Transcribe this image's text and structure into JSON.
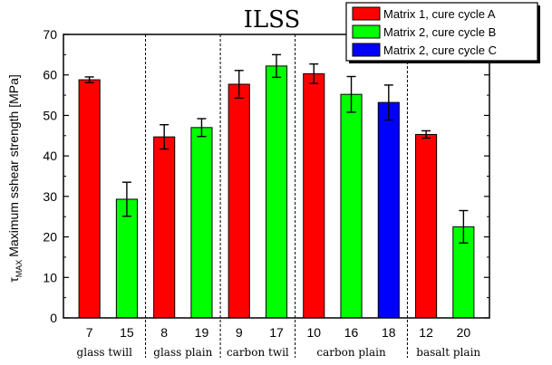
{
  "chart_data": {
    "type": "bar",
    "title": "ILSS",
    "ylabel_symbol": "τ",
    "ylabel_subscript": "MAX",
    "ylabel_text": "Maximum sshear strength [MPa]",
    "ylim": [
      0,
      70
    ],
    "yticks": [
      0,
      10,
      20,
      30,
      40,
      50,
      60,
      70
    ],
    "grid": false,
    "legend_position": "top-right",
    "legend": [
      {
        "key": "A",
        "label": "Matrix 1, cure cycle A",
        "color": "#ff0000"
      },
      {
        "key": "B",
        "label": "Matrix 2, cure cycle B",
        "color": "#00ff00"
      },
      {
        "key": "C",
        "label": "Matrix 2, cure cycle C",
        "color": "#0000ff"
      }
    ],
    "bars": [
      {
        "label": "7",
        "group": "glass twill",
        "series": "A",
        "value": 58.8,
        "error": 0.7
      },
      {
        "label": "15",
        "group": "glass twill",
        "series": "B",
        "value": 29.3,
        "error": 4.2
      },
      {
        "label": "8",
        "group": "glass plain",
        "series": "A",
        "value": 44.7,
        "error": 3.0
      },
      {
        "label": "19",
        "group": "glass plain",
        "series": "B",
        "value": 47.0,
        "error": 2.2
      },
      {
        "label": "9",
        "group": "carbon twil",
        "series": "A",
        "value": 57.7,
        "error": 3.4
      },
      {
        "label": "17",
        "group": "carbon twil",
        "series": "B",
        "value": 62.2,
        "error": 2.8
      },
      {
        "label": "10",
        "group": "carbon plain",
        "series": "A",
        "value": 60.3,
        "error": 2.4
      },
      {
        "label": "16",
        "group": "carbon plain",
        "series": "B",
        "value": 55.2,
        "error": 4.4
      },
      {
        "label": "18",
        "group": "carbon plain",
        "series": "C",
        "value": 53.2,
        "error": 4.3
      },
      {
        "label": "12",
        "group": "basalt plain",
        "series": "A",
        "value": 45.3,
        "error": 0.9
      },
      {
        "label": "20",
        "group": "basalt plain",
        "series": "B",
        "value": 22.5,
        "error": 4.0
      }
    ],
    "groups": [
      "glass twill",
      "glass plain",
      "carbon twil",
      "carbon plain",
      "basalt plain"
    ]
  }
}
